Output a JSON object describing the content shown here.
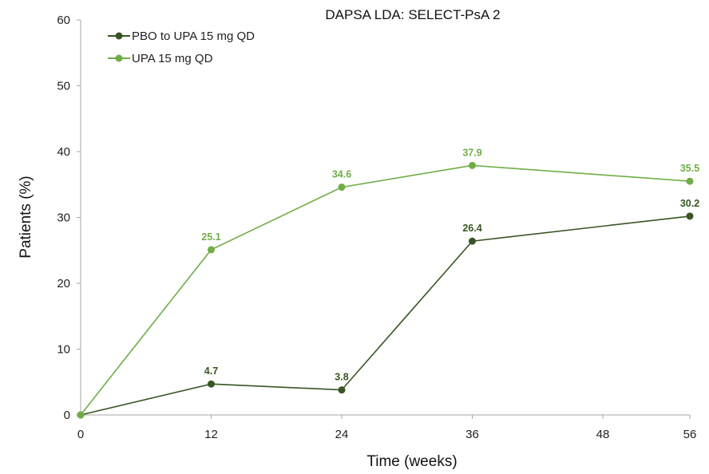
{
  "chart_data": {
    "type": "line",
    "title": "DAPSA LDA: SELECT-PsA 2",
    "xlabel": "Time (weeks)",
    "ylabel": "Patients (%)",
    "x": [
      0,
      12,
      24,
      36,
      56
    ],
    "xticks": [
      0,
      12,
      24,
      36,
      48,
      56
    ],
    "xlim": [
      0,
      56
    ],
    "yticks": [
      0,
      10,
      20,
      30,
      40,
      50,
      60
    ],
    "ylim": [
      0,
      60
    ],
    "grid": false,
    "legend_position": "top-left",
    "series": [
      {
        "name": "PBO to UPA 15 mg QD",
        "color": "#375623",
        "values": [
          0,
          4.7,
          3.8,
          26.4,
          30.2
        ],
        "labels": [
          "",
          "4.7",
          "3.8",
          "26.4",
          "30.2"
        ]
      },
      {
        "name": "UPA 15 mg QD",
        "color": "#70ad47",
        "values": [
          0,
          25.1,
          34.6,
          37.9,
          35.5
        ],
        "labels": [
          "",
          "25.1",
          "34.6",
          "37.9",
          "35.5"
        ]
      }
    ]
  }
}
